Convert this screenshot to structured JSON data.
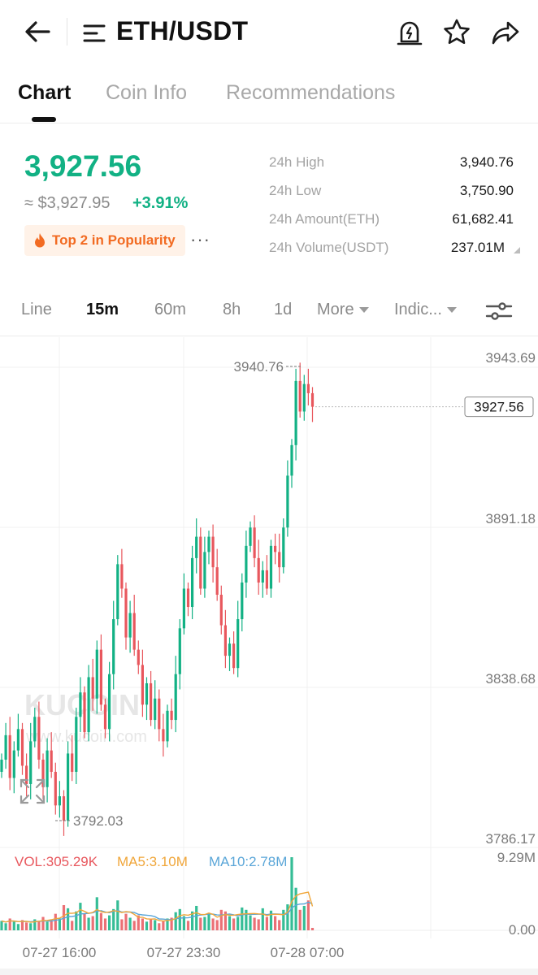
{
  "header": {
    "title": "ETH/USDT"
  },
  "tabs": [
    {
      "label": "Chart",
      "active": true
    },
    {
      "label": "Coin Info",
      "active": false
    },
    {
      "label": "Recommendations",
      "active": false
    }
  ],
  "price": {
    "last": "3,927.56",
    "usd": "≈ $3,927.95",
    "change": "+3.91%",
    "badge": "Top 2 in Popularity",
    "more": "···"
  },
  "stats": [
    {
      "label": "24h High",
      "value": "3,940.76"
    },
    {
      "label": "24h Low",
      "value": "3,750.90"
    },
    {
      "label": "24h Amount(ETH)",
      "value": "61,682.41"
    },
    {
      "label": "24h Volume(USDT)",
      "value": "237.01M"
    }
  ],
  "timeframes": [
    {
      "label": "Line",
      "active": false
    },
    {
      "label": "15m",
      "active": true
    },
    {
      "label": "60m",
      "active": false
    },
    {
      "label": "8h",
      "active": false
    },
    {
      "label": "1d",
      "active": false
    },
    {
      "label": "More",
      "active": false
    },
    {
      "label": "Indic...",
      "active": false
    }
  ],
  "colors": {
    "up": "#12b184",
    "down": "#e8575d",
    "accent_orange": "#f26b22",
    "ma5": "#f0a63a",
    "ma10": "#5aa6d8"
  },
  "chart_data": {
    "type": "candlestick",
    "price_axis_labels": [
      "3943.69",
      "3891.18",
      "3838.68",
      "3786.17"
    ],
    "volume_axis_labels": [
      "9.29M",
      "0.00"
    ],
    "x_tick_labels": [
      "07-27 16:00",
      "07-27 23:30",
      "07-28 07:00"
    ],
    "last_price_label": "3927.56",
    "last_price": 3927.56,
    "high_marker": "3940.76",
    "high_value": 3940.76,
    "low_marker": "3792.03",
    "low_value": 3792.03,
    "price_range": [
      3786.17,
      3943.69
    ],
    "volume_range": [
      0,
      9290000
    ],
    "watermark": "KUCOIN",
    "watermark_url": "www.kucoin.com",
    "indicator_labels": {
      "vol": "VOL:305.29K",
      "ma5": "MA5:3.10M",
      "ma10": "MA10:2.78M"
    },
    "closes": [
      3812,
      3820,
      3806,
      3815,
      3822,
      3810,
      3804,
      3818,
      3826,
      3812,
      3803,
      3815,
      3808,
      3797,
      3800,
      3792,
      3814,
      3808,
      3826,
      3834,
      3821,
      3839,
      3832,
      3848,
      3830,
      3822,
      3840,
      3858,
      3876,
      3868,
      3852,
      3860,
      3848,
      3843,
      3830,
      3837,
      3825,
      3832,
      3822,
      3818,
      3828,
      3825,
      3840,
      3855,
      3868,
      3862,
      3878,
      3885,
      3868,
      3880,
      3885,
      3875,
      3866,
      3856,
      3846,
      3850,
      3842,
      3858,
      3870,
      3882,
      3888,
      3878,
      3870,
      3874,
      3868,
      3882,
      3880,
      3875,
      3888,
      3905,
      3915,
      3936,
      3926,
      3935,
      3932,
      3927.56
    ],
    "volumes": [
      1.2,
      0.9,
      1.5,
      1.1,
      0.8,
      1.3,
      1.0,
      0.9,
      1.4,
      1.2,
      1.7,
      1.1,
      1.3,
      2.1,
      1.5,
      3.2,
      2.8,
      1.2,
      2.4,
      3.5,
      2.1,
      1.6,
      1.8,
      4.2,
      2.2,
      1.5,
      1.9,
      2.7,
      3.8,
      1.4,
      2.1,
      1.6,
      1.2,
      1.9,
      1.5,
      1.1,
      1.4,
      1.3,
      0.9,
      1.2,
      1.5,
      1.6,
      2.3,
      2.7,
      1.8,
      1.2,
      2.4,
      3.1,
      1.6,
      1.7,
      2.2,
      1.5,
      1.3,
      2.6,
      2.4,
      1.8,
      1.5,
      1.7,
      2.9,
      2.6,
      1.9,
      1.6,
      1.4,
      2.8,
      1.7,
      2.5,
      1.8,
      1.3,
      2.6,
      3.3,
      9.29,
      5.4,
      2.6,
      3.1,
      3.8,
      0.31
    ]
  }
}
